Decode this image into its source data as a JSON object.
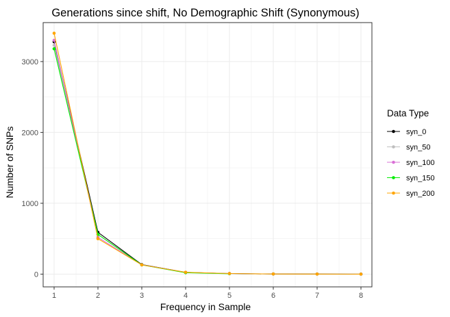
{
  "chart_data": {
    "type": "line",
    "title": "Generations since shift, No Demographic Shift (Synonymous)",
    "xlabel": "Frequency in Sample",
    "ylabel": "Number of SNPs",
    "xlim": [
      0.75,
      8.25
    ],
    "ylim": [
      -180,
      3550
    ],
    "xticks": [
      1,
      2,
      3,
      4,
      5,
      6,
      7,
      8
    ],
    "yticks": [
      0,
      1000,
      2000,
      3000
    ],
    "grid": true,
    "legend": {
      "title": "Data Type",
      "placement": "right"
    },
    "series": [
      {
        "name": "syn_0",
        "color": "#000000",
        "x": [
          1,
          2,
          3,
          4,
          5,
          6,
          7,
          8
        ],
        "values": [
          3280,
          590,
          135,
          25,
          8,
          2,
          1,
          0
        ]
      },
      {
        "name": "syn_50",
        "color": "#bebebe",
        "x": [
          1,
          2,
          3,
          4,
          5
        ],
        "values": [
          3230,
          560,
          130,
          22,
          7
        ]
      },
      {
        "name": "syn_100",
        "color": "#da70d6",
        "x": [
          1,
          2,
          3,
          4,
          5
        ],
        "values": [
          3300,
          520,
          132,
          24,
          8
        ]
      },
      {
        "name": "syn_150",
        "color": "#00ee00",
        "x": [
          1,
          2,
          3,
          4,
          5
        ],
        "values": [
          3180,
          560,
          130,
          20,
          6
        ]
      },
      {
        "name": "syn_200",
        "color": "#ffa500",
        "x": [
          1,
          2,
          3,
          4,
          5,
          6,
          7,
          8
        ],
        "values": [
          3400,
          500,
          130,
          26,
          8,
          2,
          1,
          0
        ]
      }
    ]
  }
}
